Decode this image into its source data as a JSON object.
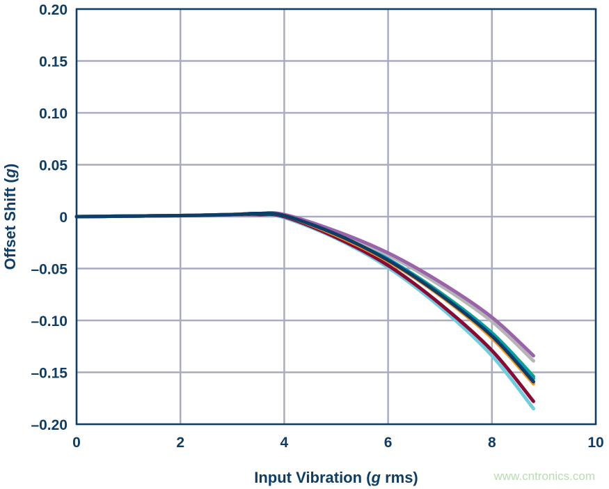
{
  "chart_data": {
    "type": "line",
    "title": "",
    "xlabel_parts": [
      "Input Vibration (",
      "g",
      " rms)"
    ],
    "ylabel_parts": [
      "Offset Shift (",
      "g",
      ")"
    ],
    "xlim": [
      0,
      10
    ],
    "ylim": [
      -0.2,
      0.2
    ],
    "x_ticks": [
      0,
      2,
      4,
      6,
      8,
      10
    ],
    "x_tick_labels": [
      "0",
      "2",
      "4",
      "6",
      "8",
      "10"
    ],
    "y_ticks": [
      0.2,
      0.15,
      0.1,
      0.05,
      0,
      -0.05,
      -0.1,
      -0.15,
      -0.2
    ],
    "y_tick_labels": [
      "0.20",
      "0.15",
      "0.10",
      "0.05",
      "0",
      "–0.05",
      "–0.10",
      "–0.15",
      "–0.20"
    ],
    "grid": true,
    "grid_color": "#a9abc2",
    "axis_color": "#0e3d66",
    "x": [
      0,
      1,
      2,
      3,
      3.5,
      4,
      5,
      6,
      7,
      8,
      8.8
    ],
    "series": [
      {
        "color": "#6fcde0",
        "values": [
          0,
          0.0005,
          0.001,
          0.002,
          0.002,
          -0.001,
          -0.021,
          -0.049,
          -0.087,
          -0.134,
          -0.185
        ]
      },
      {
        "color": "#8b0a34",
        "values": [
          0,
          0.0005,
          0.001,
          0.002,
          0.002,
          0,
          -0.02,
          -0.047,
          -0.084,
          -0.129,
          -0.178
        ]
      },
      {
        "color": "#f7941d",
        "values": [
          0,
          0.0005,
          0.001,
          0.002,
          0.003,
          0.001,
          -0.018,
          -0.043,
          -0.076,
          -0.117,
          -0.161
        ]
      },
      {
        "color": "#1aaa55",
        "values": [
          0,
          0.0005,
          0.001,
          0.002,
          0.003,
          0.001,
          -0.016,
          -0.041,
          -0.073,
          -0.112,
          -0.154
        ]
      },
      {
        "color": "#0099cc",
        "values": [
          0,
          0.0005,
          0.001,
          0.002,
          0.003,
          0.001,
          -0.017,
          -0.041,
          -0.074,
          -0.113,
          -0.156
        ]
      },
      {
        "color": "#b5b5b8",
        "values": [
          0,
          0.0005,
          0.001,
          0.002,
          0.003,
          0.002,
          -0.015,
          -0.037,
          -0.066,
          -0.101,
          -0.139
        ]
      },
      {
        "color": "#9b63a8",
        "values": [
          0,
          0.0005,
          0.001,
          0.002,
          0.003,
          0.002,
          -0.014,
          -0.035,
          -0.063,
          -0.097,
          -0.134
        ]
      },
      {
        "color": "#0e3d66",
        "values": [
          0,
          0.0005,
          0.001,
          0.002,
          0.003,
          0.001,
          -0.017,
          -0.042,
          -0.075,
          -0.115,
          -0.159
        ]
      }
    ]
  },
  "watermark": "www.cntronics.com"
}
